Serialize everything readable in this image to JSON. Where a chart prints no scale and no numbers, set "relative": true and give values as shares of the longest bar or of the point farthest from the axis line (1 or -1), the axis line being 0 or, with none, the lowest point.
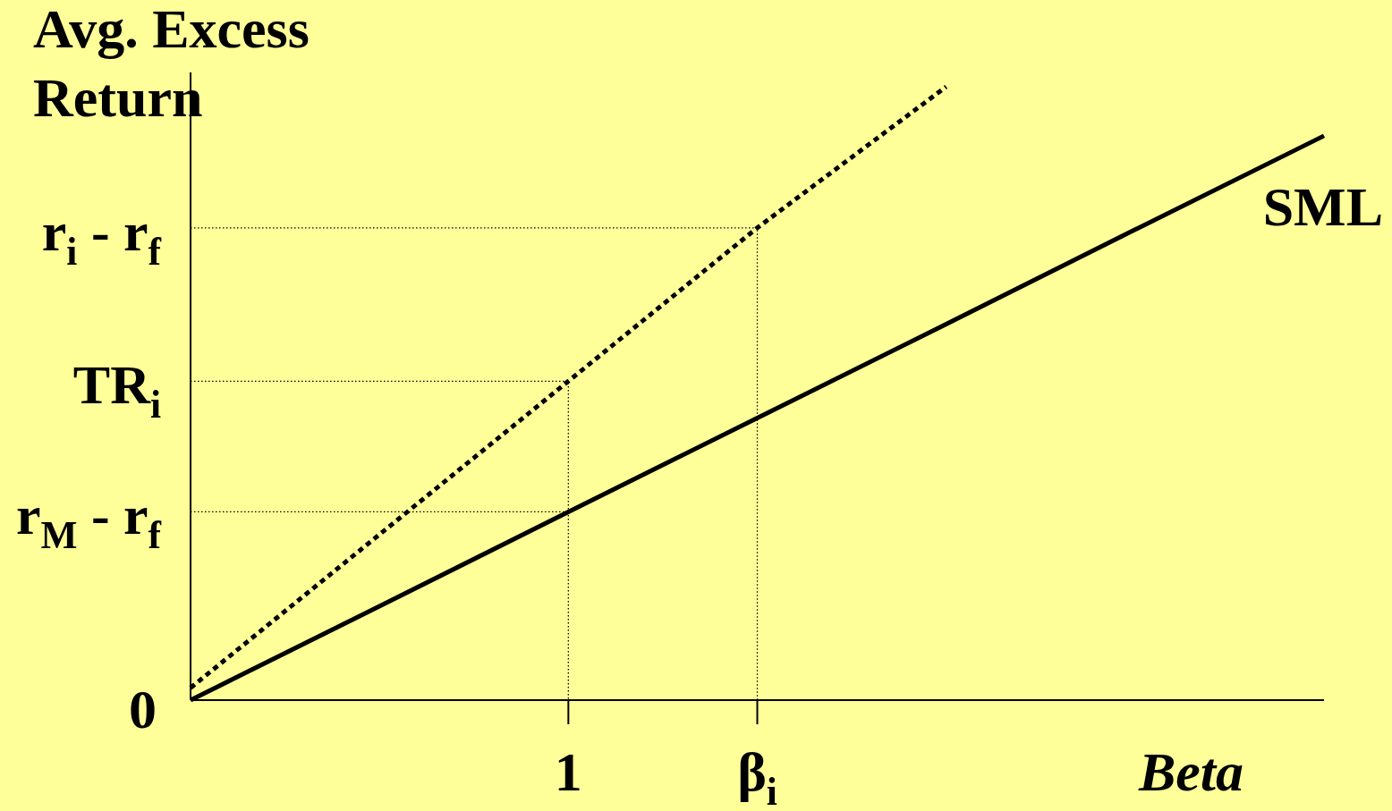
{
  "chart_data": {
    "type": "line",
    "relative": true,
    "ylabel": "Avg. Excess Return",
    "xlabel": "Beta",
    "categories": [
      null,
      null,
      "1",
      "β$_{i}$",
      null,
      null,
      null
    ],
    "annotations": [
      "r$_{i}$ - r$_{f}$",
      "TR$_{i}$",
      "r$_{M}$ - r$_{f}$",
      "0"
    ],
    "series": [
      {
        "type": "step",
        "color": "#000000",
        "line_style": "dotted",
        "values": [
          0.77,
          0.77,
          0.77,
          0,
          null,
          null,
          null
        ]
      },
      {
        "type": "step",
        "color": "#000000",
        "line_style": "dotted",
        "values": [
          0.52,
          0.52,
          0,
          null,
          null,
          null,
          null
        ]
      },
      {
        "type": "step",
        "color": "#000000",
        "line_style": "dotted",
        "values": [
          0.307,
          0.307,
          0.307,
          null,
          null,
          null,
          null
        ]
      },
      {
        "color": "#000000",
        "line_style": "dotted",
        "values": [
          0.02,
          0.27,
          0.52,
          0.77,
          1,
          null,
          null
        ]
      },
      {
        "name": "SML",
        "color": "#000000",
        "line_style": "solid",
        "values": [
          0,
          0.153,
          0.307,
          0.46,
          0.613,
          0.767,
          0.92
        ]
      }
    ]
  }
}
